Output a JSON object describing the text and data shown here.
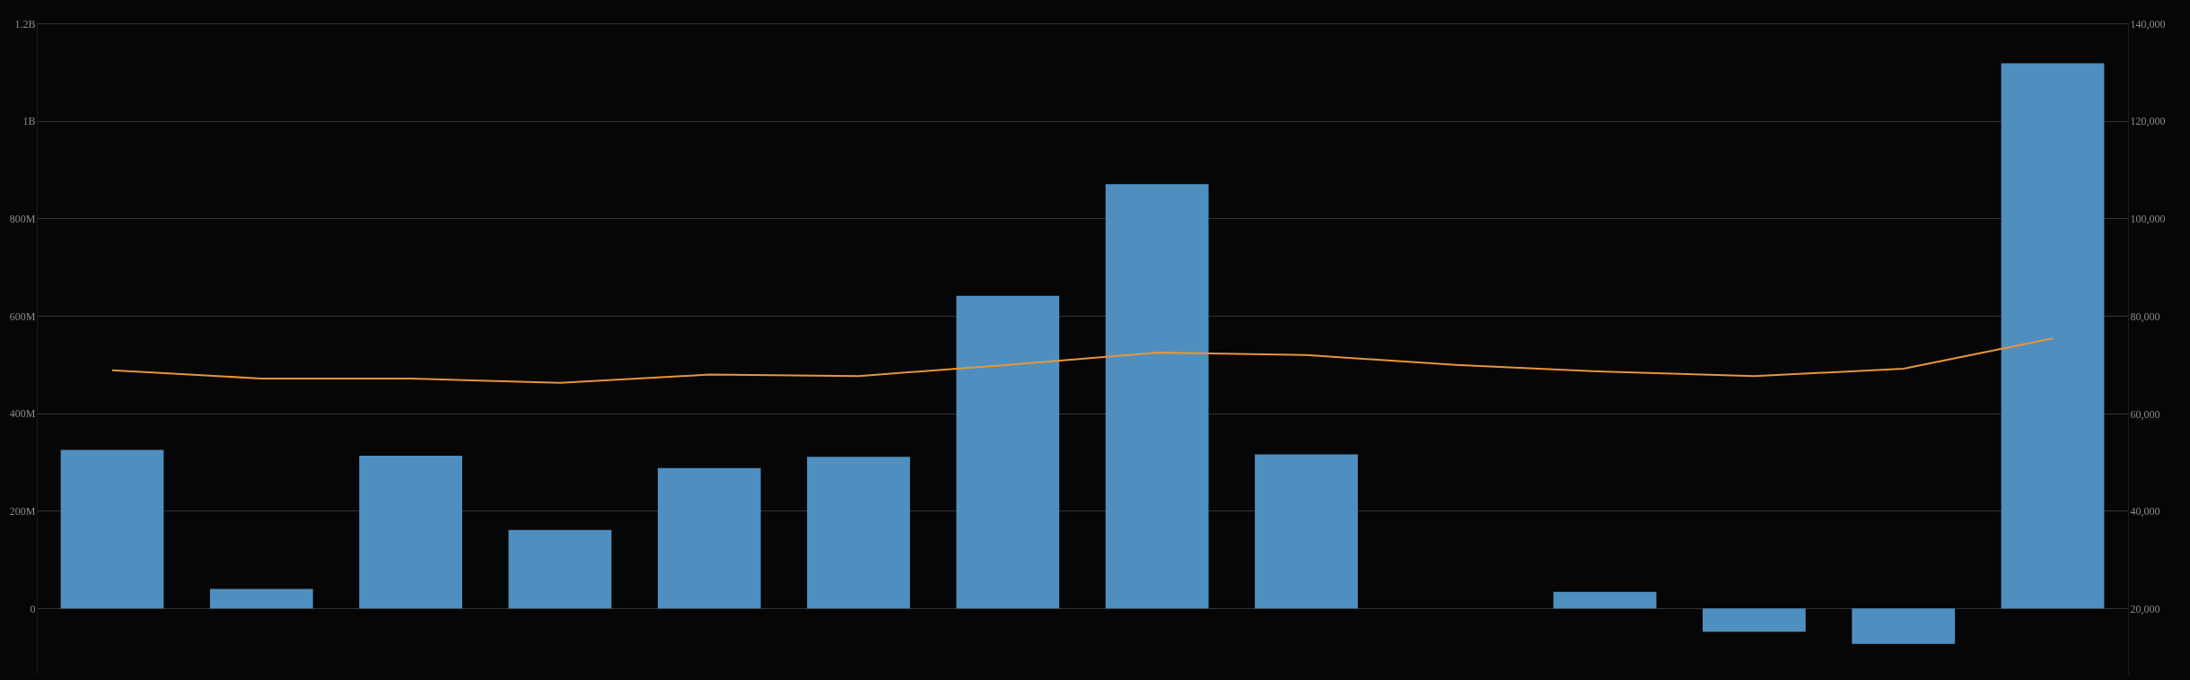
{
  "chart_data": {
    "type": "bar",
    "categories": [
      null,
      null,
      null,
      null,
      null,
      null,
      null,
      null,
      null,
      null,
      null,
      null,
      null,
      null
    ],
    "series": [
      {
        "color": "#4e8fc0",
        "values": [
          325000000,
          40000000,
          313000000,
          161000000,
          288000000,
          311000000,
          641000000,
          870000000,
          316000000,
          null,
          34000000,
          -48000000,
          -73000000,
          1118000000
        ]
      },
      {
        "type": "line",
        "axis": "y2",
        "color": "#e8963a",
        "values": [
          68900,
          67200,
          67200,
          66300,
          68000,
          67700,
          70000,
          72500,
          72000,
          70000,
          68600,
          67700,
          69200,
          75400
        ]
      }
    ],
    "ylim": [
      -134000000,
      1200000000
    ],
    "yticks": [
      {
        "value": 0,
        "label": "0"
      },
      {
        "value": 200000000,
        "label": "200M"
      },
      {
        "value": 400000000,
        "label": "400M"
      },
      {
        "value": 600000000,
        "label": "600M"
      },
      {
        "value": 800000000,
        "label": "800M"
      },
      {
        "value": 1000000000,
        "label": "1B"
      },
      {
        "value": 1200000000,
        "label": "1.2B"
      }
    ],
    "y2lim": [
      6700,
      140000
    ],
    "y2ticks": [
      {
        "value": 20000,
        "label": "20,000"
      },
      {
        "value": 40000,
        "label": "40,000"
      },
      {
        "value": 60000,
        "label": "60,000"
      },
      {
        "value": 80000,
        "label": "80,000"
      },
      {
        "value": 100000,
        "label": "100,000"
      },
      {
        "value": 120000,
        "label": "120,000"
      },
      {
        "value": 140000,
        "label": "140,000"
      }
    ],
    "grid": "y",
    "tick_labels": "y",
    "marker": "none",
    "line_style": "solid"
  }
}
